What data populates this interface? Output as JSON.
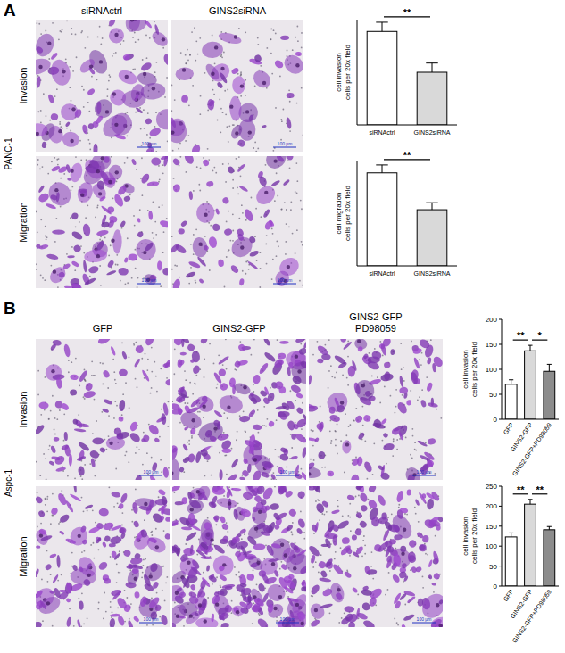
{
  "panels": [
    {
      "label": "A",
      "cell_line": "PANC-1",
      "columns": [
        [
          "siRNActrl"
        ],
        [
          "GINS2siRNA"
        ]
      ],
      "rows": [
        "Invasion",
        "Migration"
      ],
      "scale_bar": "100 μm"
    },
    {
      "label": "B",
      "cell_line": "Aspc-1",
      "columns": [
        [
          "GFP"
        ],
        [
          "GINS2-GFP"
        ],
        [
          "GINS2-GFP",
          "PD98059"
        ]
      ],
      "rows": [
        "Invasion",
        "Migration"
      ],
      "scale_bar": "100 μm"
    }
  ],
  "chart_data": [
    {
      "type": "bar",
      "y_label": [
        "cell invasion",
        "cells per 20x field"
      ],
      "categories": [
        "siRNActrl",
        "GINS2siRNA"
      ],
      "values": [
        71,
        40
      ],
      "error": [
        7,
        7
      ],
      "colors": [
        "#ffffff",
        "#d9d9d9"
      ],
      "ylim": [
        0,
        80
      ],
      "tick_labels": "x",
      "significance": [
        {
          "between": [
            0,
            1
          ],
          "label": "**"
        }
      ]
    },
    {
      "type": "bar",
      "y_label": [
        "cell migration",
        "cells per 20x field"
      ],
      "categories": [
        "siRNActrl",
        "GINS2siRNA"
      ],
      "values": [
        106,
        64
      ],
      "error": [
        9,
        8
      ],
      "colors": [
        "#ffffff",
        "#d9d9d9"
      ],
      "ylim": [
        0,
        120
      ],
      "tick_labels": "x",
      "significance": [
        {
          "between": [
            0,
            1
          ],
          "label": "**"
        }
      ]
    },
    {
      "type": "bar",
      "y_label": [
        "cell invasion",
        "cells per 20x field"
      ],
      "categories": [
        "GFP",
        "GINS2-GFP",
        "GINS2-GFP+PD98059"
      ],
      "values": [
        70,
        137,
        96
      ],
      "error": [
        9,
        11,
        14
      ],
      "colors": [
        "#ffffff",
        "#d9d9d9",
        "#8c8c8c"
      ],
      "ylim": [
        0,
        200
      ],
      "yticks": [
        0,
        50,
        100,
        150,
        200
      ],
      "significance": [
        {
          "between": [
            0,
            1
          ],
          "label": "**"
        },
        {
          "between": [
            1,
            2
          ],
          "label": "*"
        }
      ]
    },
    {
      "type": "bar",
      "y_label": [
        "cell invasion",
        "cells per 20x field"
      ],
      "categories": [
        "GFP",
        "GINS2-GFP",
        "GINS2-GFP+PD98059"
      ],
      "values": [
        123,
        205,
        141
      ],
      "error": [
        10,
        12,
        8
      ],
      "colors": [
        "#ffffff",
        "#d9d9d9",
        "#8c8c8c"
      ],
      "ylim": [
        0,
        250
      ],
      "yticks": [
        0,
        50,
        100,
        150,
        200,
        250
      ],
      "significance": [
        {
          "between": [
            0,
            1
          ],
          "label": "**"
        },
        {
          "between": [
            1,
            2
          ],
          "label": "**"
        }
      ]
    }
  ]
}
